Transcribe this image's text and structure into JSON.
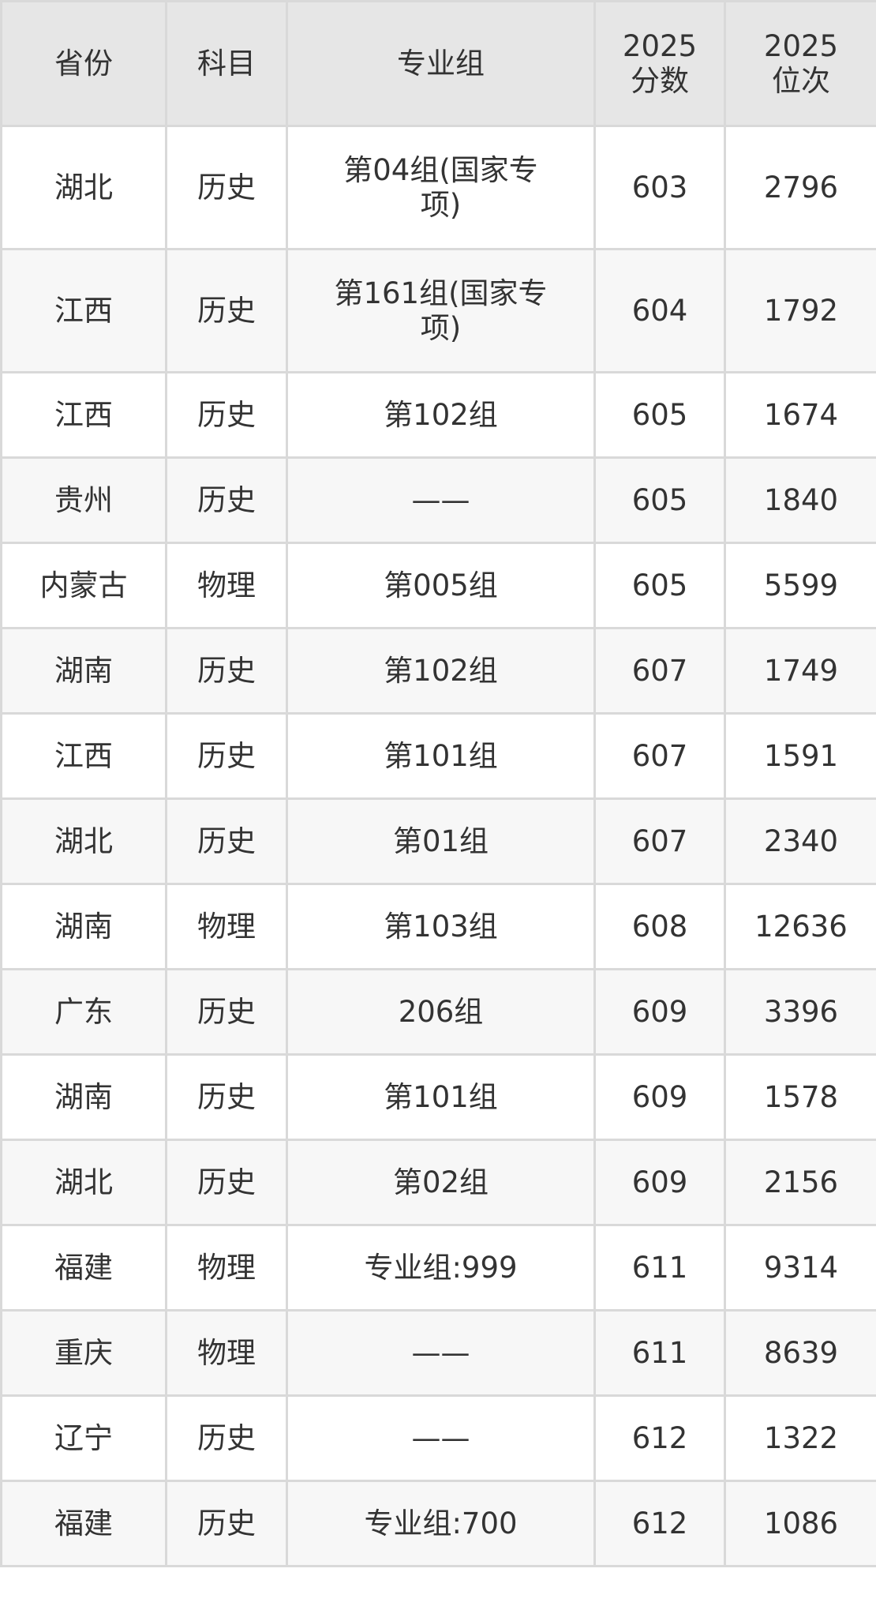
{
  "table": {
    "headers": [
      "省份",
      "科目",
      "专业组",
      "2025\n分数",
      "2025\n位次"
    ],
    "rows": [
      [
        "湖北",
        "历史",
        "第04组(国家专项)",
        "603",
        "2796"
      ],
      [
        "江西",
        "历史",
        "第161组(国家专项)",
        "604",
        "1792"
      ],
      [
        "江西",
        "历史",
        "第102组",
        "605",
        "1674"
      ],
      [
        "贵州",
        "历史",
        "——",
        "605",
        "1840"
      ],
      [
        "内蒙古",
        "物理",
        "第005组",
        "605",
        "5599"
      ],
      [
        "湖南",
        "历史",
        "第102组",
        "607",
        "1749"
      ],
      [
        "江西",
        "历史",
        "第101组",
        "607",
        "1591"
      ],
      [
        "湖北",
        "历史",
        "第01组",
        "607",
        "2340"
      ],
      [
        "湖南",
        "物理",
        "第103组",
        "608",
        "12636"
      ],
      [
        "广东",
        "历史",
        "206组",
        "609",
        "3396"
      ],
      [
        "湖南",
        "历史",
        "第101组",
        "609",
        "1578"
      ],
      [
        "湖北",
        "历史",
        "第02组",
        "609",
        "2156"
      ],
      [
        "福建",
        "物理",
        "专业组:999",
        "611",
        "9314"
      ],
      [
        "重庆",
        "物理",
        "——",
        "611",
        "8639"
      ],
      [
        "辽宁",
        "历史",
        "——",
        "612",
        "1322"
      ],
      [
        "福建",
        "历史",
        "专业组:700",
        "612",
        "1086"
      ]
    ]
  }
}
